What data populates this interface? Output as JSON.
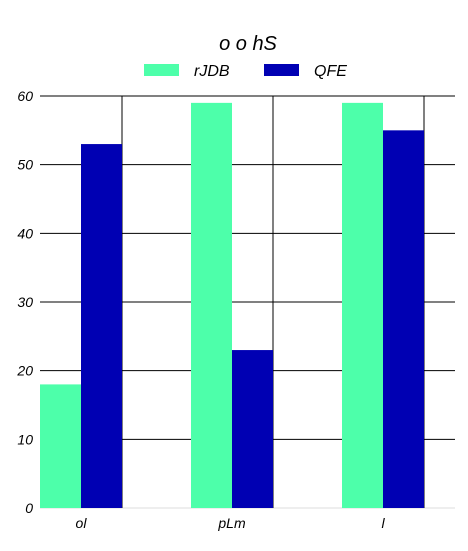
{
  "chart_data": {
    "type": "bar",
    "title": "o o hS",
    "categories": [
      "ol",
      "pLm",
      "l"
    ],
    "series": [
      {
        "name": "rJDB",
        "values": [
          18,
          59,
          59
        ],
        "color": "#4dffaa"
      },
      {
        "name": "QFE",
        "values": [
          53,
          23,
          55
        ],
        "color": "#0000b3"
      }
    ],
    "ylim": [
      0,
      60
    ],
    "yticks": [
      0,
      10,
      20,
      30,
      40,
      50,
      60
    ],
    "grid": true,
    "legend_position": "top-center",
    "xlabel": "",
    "ylabel": ""
  }
}
